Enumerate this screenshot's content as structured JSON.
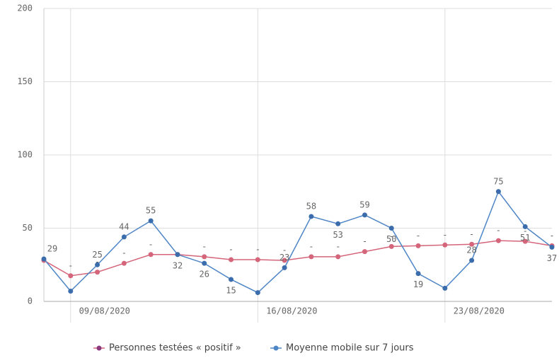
{
  "chart_data": {
    "type": "line",
    "categories": [
      null,
      "09/08/2020",
      null,
      null,
      null,
      null,
      null,
      null,
      "16/08/2020",
      null,
      null,
      null,
      null,
      null,
      null,
      "23/08/2020",
      null,
      null,
      null,
      null
    ],
    "series": [
      {
        "name": "Personnes testées « positif »",
        "color": "#d4657a",
        "values": [
          28,
          17.5,
          20,
          26,
          32,
          32,
          30.5,
          28.5,
          28.5,
          28,
          30.5,
          30.5,
          34,
          37.5,
          38,
          38.5,
          39,
          41.5,
          41,
          38
        ],
        "value_labels": [
          null,
          "-",
          "-",
          "-",
          "-",
          null,
          "-",
          "-",
          "-",
          "-",
          "-",
          "-",
          "-",
          "-",
          "-",
          "-",
          "-",
          "-",
          "-",
          "-"
        ]
      },
      {
        "name": "Moyenne mobile sur 7 jours",
        "color": "#4f86c6",
        "values": [
          29,
          7,
          25,
          44,
          55,
          32,
          26,
          15,
          6,
          23,
          58,
          53,
          59,
          50,
          19,
          9,
          28,
          75,
          51,
          37
        ],
        "value_labels": [
          "29",
          null,
          "25",
          "44",
          "55",
          "32",
          "26",
          "15",
          null,
          "23",
          "58",
          "53",
          "59",
          "50",
          "19",
          null,
          "28",
          "75",
          "51",
          "37"
        ]
      }
    ],
    "ylim": [
      0,
      200
    ],
    "yticks": [
      0,
      50,
      100,
      150,
      200
    ],
    "grid": true
  }
}
